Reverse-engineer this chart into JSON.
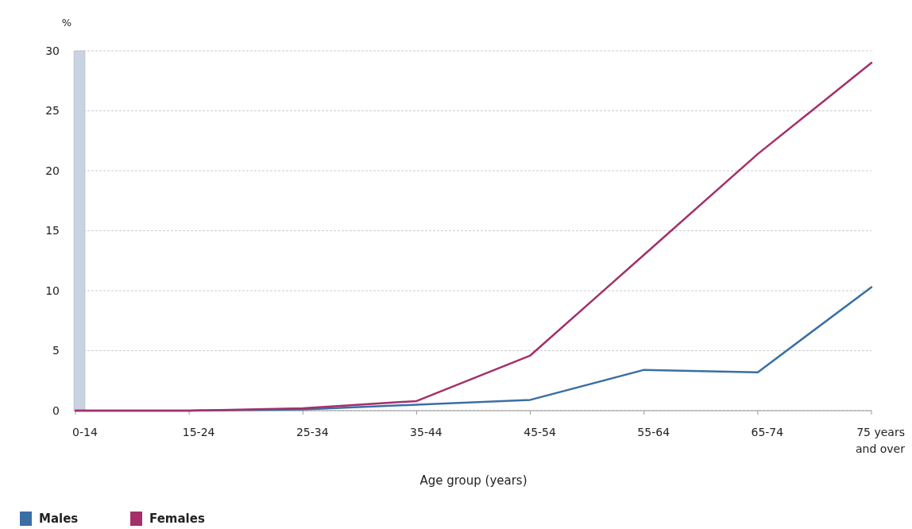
{
  "chart_data": {
    "type": "line",
    "ylabel": "%",
    "xlabel": "Age group (years)",
    "categories": [
      "0-14",
      "15-24",
      "25-34",
      "35-44",
      "45-54",
      "55-64",
      "65-74",
      "75 years and over"
    ],
    "series": [
      {
        "name": "Males",
        "color": "#3a6ea5",
        "values": [
          0,
          0,
          0.1,
          0.5,
          0.9,
          3.4,
          3.2,
          10.3
        ]
      },
      {
        "name": "Females",
        "color": "#a3306a",
        "values": [
          0,
          0,
          0.2,
          0.8,
          4.6,
          13.0,
          21.4,
          29.0
        ]
      }
    ],
    "bands": [
      {
        "axis": "x",
        "from": "0-14",
        "to": "0-14",
        "color": "#c9d3e0"
      }
    ],
    "ylim": [
      0,
      30
    ],
    "yticks": [
      0,
      5,
      10,
      15,
      20,
      25,
      30
    ],
    "grid": "y",
    "legend": "bottom left",
    "marker": "none",
    "line_style": "solid"
  }
}
